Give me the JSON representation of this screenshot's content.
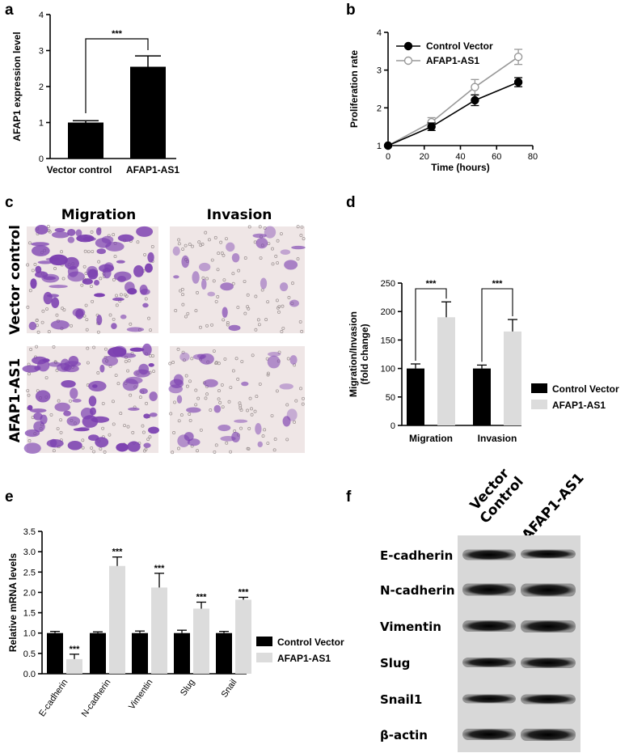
{
  "panel_labels": [
    "a",
    "b",
    "c",
    "d",
    "e",
    "f"
  ],
  "colors": {
    "black": "#000000",
    "light_gray": "#dcdcdc",
    "line_gray": "#999999",
    "stain": "#7b3fb0"
  },
  "chart_data": [
    {
      "panel": "a",
      "type": "bar",
      "categories": [
        "Vector control",
        "AFAP1-AS1"
      ],
      "values": [
        1.0,
        2.55
      ],
      "errors": [
        0.05,
        0.3
      ],
      "colors": [
        "#000000",
        "#000000"
      ],
      "ylabel": "AFAP1 expression level",
      "ylim": [
        0,
        4
      ],
      "yticks": [
        "0",
        "1",
        "2",
        "3",
        "4"
      ],
      "significance": "***"
    },
    {
      "panel": "b",
      "type": "line",
      "xlabel": "Time (hours)",
      "ylabel": "Proliferation rate",
      "xlim": [
        0,
        80
      ],
      "ylim": [
        1,
        4
      ],
      "xticks": [
        "0",
        "20",
        "40",
        "60",
        "80"
      ],
      "yticks": [
        "1",
        "2",
        "3",
        "4"
      ],
      "legend_position": "top-left",
      "series": [
        {
          "name": "Control Vector",
          "x": [
            0,
            24,
            48,
            72
          ],
          "y": [
            1.0,
            1.5,
            2.2,
            2.68
          ],
          "err": [
            0.02,
            0.1,
            0.14,
            0.12
          ],
          "color": "#000000",
          "marker": "filled"
        },
        {
          "name": "AFAP1-AS1",
          "x": [
            0,
            24,
            48,
            72
          ],
          "y": [
            1.0,
            1.62,
            2.55,
            3.35
          ],
          "err": [
            0.02,
            0.12,
            0.2,
            0.2
          ],
          "color": "#999999",
          "marker": "open"
        }
      ]
    },
    {
      "panel": "d",
      "type": "bar",
      "categories": [
        "Migration",
        "Invasion"
      ],
      "ylabel": "Migration/Invasion\n(fold change)",
      "ylim": [
        0,
        250
      ],
      "yticks": [
        "0",
        "50",
        "100",
        "150",
        "200",
        "250"
      ],
      "legend_position": "right",
      "series": [
        {
          "name": "Control Vector",
          "values": [
            100,
            100
          ],
          "errors": [
            8,
            6
          ],
          "color": "#000000"
        },
        {
          "name": "AFAP1-AS1",
          "values": [
            190,
            165
          ],
          "errors": [
            27,
            21
          ],
          "color": "#dcdcdc"
        }
      ],
      "significance": [
        "***",
        "***"
      ]
    },
    {
      "panel": "e",
      "type": "bar",
      "categories": [
        "E-cadherin",
        "N-cadherin",
        "Vimentin",
        "Slug",
        "Snail"
      ],
      "ylabel": "Relative mRNA levels",
      "ylim": [
        0,
        3.5
      ],
      "yticks": [
        "0.0",
        "0.5",
        "1.0",
        "1.5",
        "2.0",
        "2.5",
        "3.0",
        "3.5"
      ],
      "legend_position": "right",
      "series": [
        {
          "name": "Control Vector",
          "values": [
            1.0,
            1.0,
            1.0,
            1.0,
            1.0
          ],
          "errors": [
            0.04,
            0.03,
            0.05,
            0.07,
            0.04
          ],
          "color": "#000000"
        },
        {
          "name": "AFAP1-AS1",
          "values": [
            0.36,
            2.65,
            2.12,
            1.6,
            1.82
          ],
          "errors": [
            0.12,
            0.22,
            0.35,
            0.16,
            0.06
          ],
          "color": "#dcdcdc"
        }
      ],
      "significance": [
        "***",
        "***",
        "***",
        "***",
        "***"
      ]
    }
  ],
  "panel_c": {
    "columns": [
      "Migration",
      "Invasion"
    ],
    "rows": [
      "Vector control",
      "AFAP1-AS1"
    ]
  },
  "panel_f": {
    "columns": [
      "Vector\nControl",
      "AFAP1-AS1"
    ],
    "bands": [
      "E-cadherin",
      "N-cadherin",
      "Vimentin",
      "Slug",
      "Snail1",
      "β-actin"
    ]
  }
}
